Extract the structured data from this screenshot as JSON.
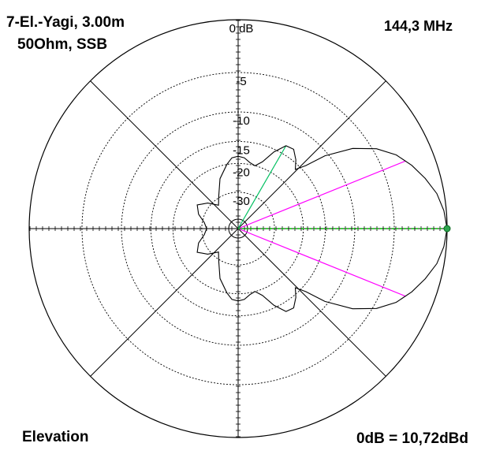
{
  "header": {
    "line1": "7-El.-Yagi, 3.00m",
    "line2": "50Ohm, SSB",
    "frequency": "144,3 MHz"
  },
  "footer": {
    "mode": "Elevation",
    "reference": "0dB = 10,72dBd"
  },
  "chart_data": {
    "type": "polar",
    "radial_unit": "dB",
    "radial_ticks": [
      {
        "db": 0,
        "label": "0 dB"
      },
      {
        "db": -5,
        "label": "-5"
      },
      {
        "db": -10,
        "label": "-10"
      },
      {
        "db": -15,
        "label": "-15"
      },
      {
        "db": -20,
        "label": "-20"
      },
      {
        "db": -30,
        "label": "-30"
      }
    ],
    "spokes_deg": [
      0,
      45,
      90,
      135,
      180,
      225,
      270,
      315
    ],
    "colors": {
      "pattern": "#000000",
      "half_power": "#ff00ff",
      "main_lobe": "#00c000",
      "side_lobe": "#00c060"
    },
    "pattern_series": [
      {
        "angle": 0,
        "db": 0
      },
      {
        "angle": 5,
        "db": -0.2
      },
      {
        "angle": 10,
        "db": -0.6
      },
      {
        "angle": 15,
        "db": -1.3
      },
      {
        "angle": 20,
        "db": -2.1
      },
      {
        "angle": 25,
        "db": -3.1
      },
      {
        "angle": 30,
        "db": -4.6
      },
      {
        "angle": 35,
        "db": -6.9
      },
      {
        "angle": 40,
        "db": -10.5
      },
      {
        "angle": 43,
        "db": -14.0
      },
      {
        "angle": 46,
        "db": -16.0
      },
      {
        "angle": 50,
        "db": -14.5
      },
      {
        "angle": 55,
        "db": -13.2
      },
      {
        "angle": 60,
        "db": -13.4
      },
      {
        "angle": 65,
        "db": -15.5
      },
      {
        "angle": 70,
        "db": -18.5
      },
      {
        "angle": 75,
        "db": -20.0
      },
      {
        "angle": 80,
        "db": -19.5
      },
      {
        "angle": 85,
        "db": -18.5
      },
      {
        "angle": 90,
        "db": -18.2
      },
      {
        "angle": 95,
        "db": -18.5
      },
      {
        "angle": 100,
        "db": -20.0
      },
      {
        "angle": 110,
        "db": -23.5
      },
      {
        "angle": 120,
        "db": -29.0
      },
      {
        "angle": 130,
        "db": -33.0
      },
      {
        "angle": 140,
        "db": -28.5
      },
      {
        "angle": 150,
        "db": -25.5
      },
      {
        "angle": 160,
        "db": -27.5
      },
      {
        "angle": 170,
        "db": -31.0
      },
      {
        "angle": 180,
        "db": -32.5
      }
    ],
    "half_power_beam_deg": 22,
    "side_lobe_marker_deg": 60,
    "xlabel": "",
    "ylabel": ""
  }
}
